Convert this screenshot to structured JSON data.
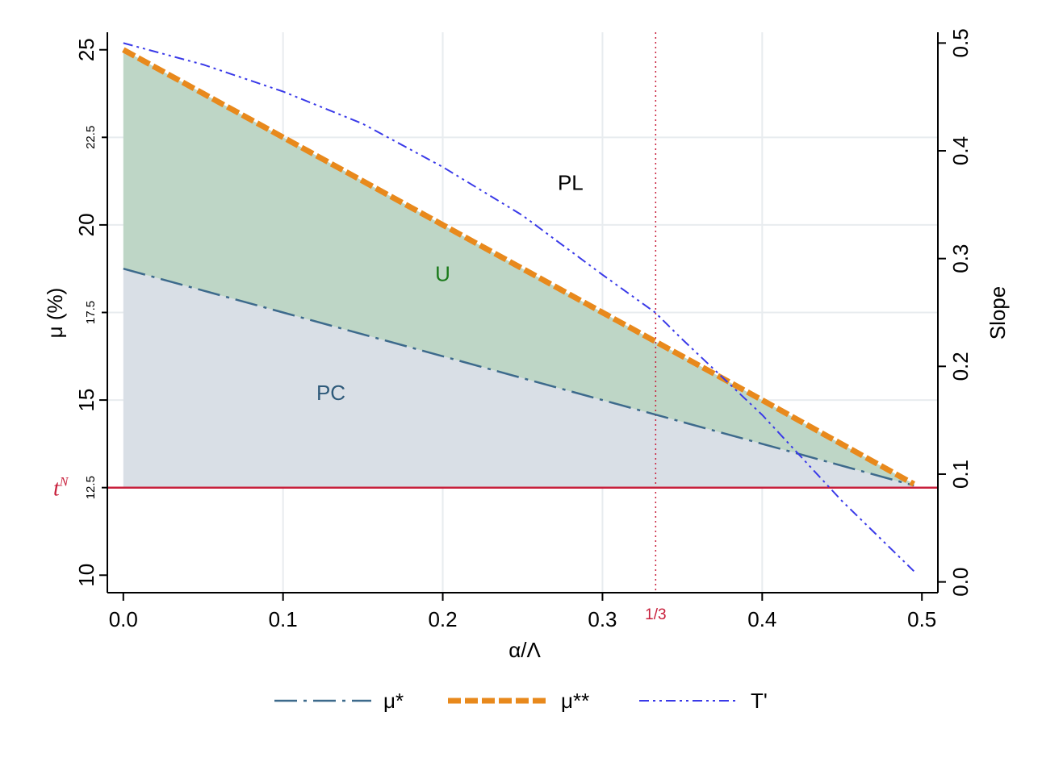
{
  "chart_data": {
    "type": "line",
    "xlabel": "α/Λ",
    "ylabel": "μ (%)",
    "y2label": "Slope",
    "xlim": [
      -0.01,
      0.51
    ],
    "ylim": [
      9.5,
      25.5
    ],
    "y2lim": [
      -0.01,
      0.51
    ],
    "grid": true,
    "legend_position": "bottom",
    "x_ticks": [
      0.0,
      0.1,
      0.2,
      0.3,
      0.4,
      0.5
    ],
    "x_tick_labels": [
      "0.0",
      "0.1",
      "0.2",
      "0.3",
      "0.4",
      "0.5"
    ],
    "y_ticks_major": [
      10,
      15,
      20,
      25
    ],
    "y_tick_labels_major": [
      "10",
      "15",
      "20",
      "25"
    ],
    "y_ticks_minor": [
      12.5,
      17.5,
      22.5
    ],
    "y_tick_labels_minor": [
      "12.5",
      "17.5",
      "22.5"
    ],
    "y2_ticks": [
      0.0,
      0.1,
      0.2,
      0.3,
      0.4,
      0.5
    ],
    "y2_tick_labels": [
      "0.0",
      "0.1",
      "0.2",
      "0.3",
      "0.4",
      "0.5"
    ],
    "x_gridlines": [
      0.1,
      0.2,
      0.3,
      0.4
    ],
    "y_gridlines": [
      12.5,
      15,
      17.5,
      20,
      22.5
    ],
    "series": [
      {
        "name": "μ*",
        "axis": "left",
        "color": "#3d6a8c",
        "style": "longdash-dot",
        "x": [
          0.0,
          0.1,
          0.2,
          0.3,
          0.4,
          0.495
        ],
        "y": [
          18.75,
          17.5,
          16.25,
          15.0,
          13.75,
          12.56
        ]
      },
      {
        "name": "μ**",
        "axis": "left",
        "color": "#e8891c",
        "style": "thick-dash",
        "x": [
          0.0,
          0.1,
          0.2,
          0.3,
          0.4,
          0.495
        ],
        "y": [
          25.0,
          22.5,
          20.0,
          17.5,
          15.0,
          12.6
        ]
      },
      {
        "name": "T'",
        "axis": "right",
        "color": "#3a3ae8",
        "style": "dash-dot-dot",
        "x": [
          0.0,
          0.05,
          0.1,
          0.15,
          0.2,
          0.25,
          0.3,
          0.333,
          0.35,
          0.4,
          0.45,
          0.495
        ],
        "y": [
          0.5,
          0.48,
          0.455,
          0.425,
          0.385,
          0.34,
          0.285,
          0.25,
          0.225,
          0.155,
          0.075,
          0.01
        ]
      }
    ],
    "horizontal_line": {
      "label": "t",
      "superscript": "N",
      "y": 12.5,
      "color": "#c8203c"
    },
    "vertical_line": {
      "label": "1/3",
      "x": 0.3333,
      "color": "#c8203c"
    },
    "regions": [
      {
        "label": "U",
        "color": "#1a7a1a",
        "fill": "#bed6c6",
        "label_pos": [
          0.2,
          18.4
        ]
      },
      {
        "label": "PC",
        "color": "#2e5a7a",
        "fill": "#d9dfe6",
        "label_pos": [
          0.13,
          15.0
        ]
      },
      {
        "label": "PL",
        "color": "#000000",
        "label_pos": [
          0.28,
          21.0
        ]
      }
    ]
  }
}
